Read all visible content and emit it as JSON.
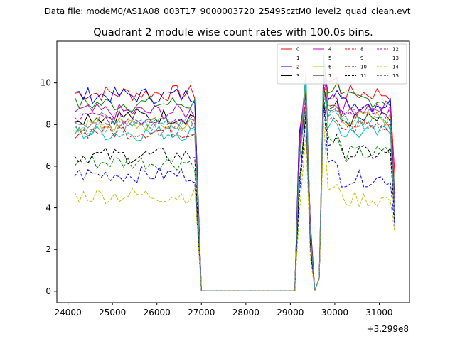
{
  "chart_data": {
    "type": "line",
    "suptitle": "Data file: modeM0/AS1A08_003T17_9000003720_25495cztM0_level2_quad_clean.evt",
    "title": "Quadrant 2 module wise count rates with 100.0s bins.",
    "xlabel": "",
    "ylabel": "",
    "offset_text": "+3.299e8",
    "xlim": [
      23750,
      31680
    ],
    "ylim": [
      -0.55,
      12.0
    ],
    "xticks": [
      24000,
      25000,
      26000,
      27000,
      28000,
      29000,
      30000,
      31000
    ],
    "xtick_labels": [
      "24000",
      "25000",
      "26000",
      "27000",
      "28000",
      "29000",
      "30000",
      "31000"
    ],
    "yticks": [
      0,
      2,
      4,
      6,
      8,
      10
    ],
    "ytick_labels": [
      "0",
      "2",
      "4",
      "6",
      "8",
      "10"
    ],
    "grid": false,
    "legend_position": "top-right",
    "legend_columns": 4,
    "time_bins": {
      "segment1_start": 24150,
      "segment1_end": 26850,
      "gap_start": 27000,
      "gap_end": 29150,
      "segment2_start": 29250,
      "segment2_end": 29850,
      "segment3_start": 29750,
      "segment3_end": 31350,
      "bin_width_s": 100
    },
    "series": [
      {
        "name": "0",
        "color": "#ff0000",
        "dash": "solid",
        "level1": 9.5,
        "level2": 9.5,
        "peak": 10.4,
        "end": 5.5
      },
      {
        "name": "1",
        "color": "#008000",
        "dash": "solid",
        "level1": 9.0,
        "level2": 9.2,
        "peak": 10.9,
        "end": 4.3
      },
      {
        "name": "2",
        "color": "#0000ff",
        "dash": "solid",
        "level1": 9.4,
        "level2": 9.0,
        "peak": 10.2,
        "end": 3.9
      },
      {
        "name": "3",
        "color": "#000000",
        "dash": "solid",
        "level1": 8.4,
        "level2": 8.2,
        "peak": 9.8,
        "end": 3.6
      },
      {
        "name": "4",
        "color": "#bf00bf",
        "dash": "solid",
        "level1": 8.6,
        "level2": 8.8,
        "peak": 11.2,
        "end": 3.8
      },
      {
        "name": "5",
        "color": "#00bfbf",
        "dash": "solid",
        "level1": 7.6,
        "level2": 7.6,
        "peak": 11.4,
        "end": 3.7
      },
      {
        "name": "6",
        "color": "#bfbf00",
        "dash": "solid",
        "level1": 8.0,
        "level2": 8.3,
        "peak": 10.8,
        "end": 3.6
      },
      {
        "name": "7",
        "color": "#808080",
        "dash": "solid",
        "level1": 8.2,
        "level2": 8.4,
        "peak": 10.6,
        "end": 3.5
      },
      {
        "name": "8",
        "color": "#ff0000",
        "dash": "dashed",
        "level1": 7.7,
        "level2": 7.9,
        "peak": 9.9,
        "end": 3.4
      },
      {
        "name": "9",
        "color": "#008000",
        "dash": "dashed",
        "level1": 6.2,
        "level2": 6.6,
        "peak": 9.4,
        "end": 3.3
      },
      {
        "name": "10",
        "color": "#0000ff",
        "dash": "dashed",
        "level1": 5.6,
        "level2": 5.4,
        "peak": 9.0,
        "end": 3.1
      },
      {
        "name": "11",
        "color": "#000000",
        "dash": "dashed",
        "level1": 6.5,
        "level2": 6.6,
        "peak": 9.2,
        "end": 3.3
      },
      {
        "name": "12",
        "color": "#bf00bf",
        "dash": "dashed",
        "level1": 8.3,
        "level2": 8.6,
        "peak": 10.0,
        "end": 3.7
      },
      {
        "name": "13",
        "color": "#00bfbf",
        "dash": "dashed",
        "level1": 7.9,
        "level2": 8.1,
        "peak": 9.7,
        "end": 3.5
      },
      {
        "name": "14",
        "color": "#bfbf00",
        "dash": "dashed",
        "level1": 4.6,
        "level2": 4.4,
        "peak": 8.1,
        "end": 2.8
      },
      {
        "name": "15",
        "color": "#808080",
        "dash": "dashed",
        "level1": 7.8,
        "level2": 7.9,
        "peak": 9.6,
        "end": 3.4
      }
    ]
  }
}
